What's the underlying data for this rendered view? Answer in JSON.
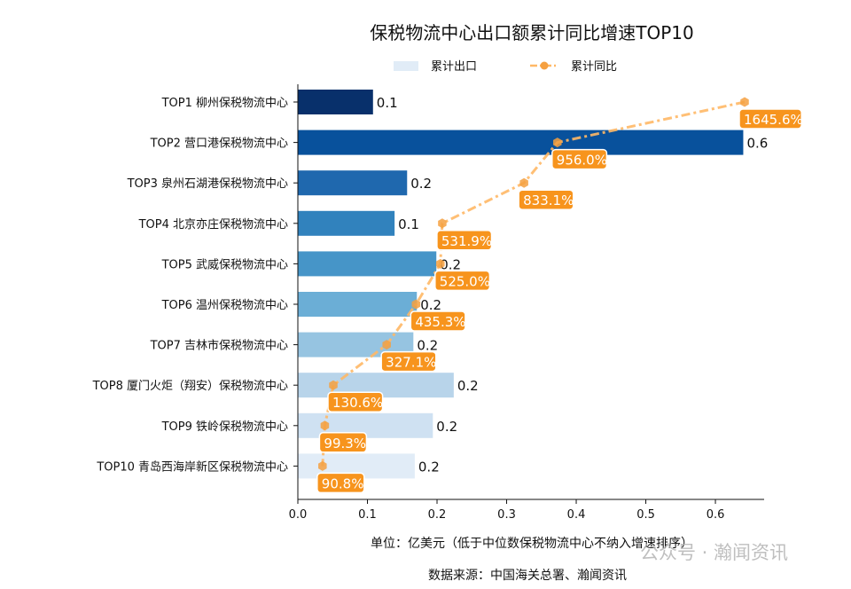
{
  "chart_data": {
    "type": "bar",
    "orientation": "horizontal",
    "title": "保税物流中心出口额累计同比增速TOP10",
    "xlabel": "单位：亿美元（低于中位数保税物流中心不纳入增速排序）",
    "source": "数据来源：中国海关总署、瀚闻资讯",
    "watermark": "公众号 · 瀚闻资讯",
    "xlim": [
      0,
      0.67
    ],
    "xticks": [
      "0.0",
      "0.1",
      "0.2",
      "0.3",
      "0.4",
      "0.5",
      "0.6"
    ],
    "grid": false,
    "legend_placement": "top-center",
    "categories": [
      "TOP1 柳州保税物流中心",
      "TOP2 营口港保税物流中心",
      "TOP3 泉州石湖港保税物流中心",
      "TOP4 北京亦庄保税物流中心",
      "TOP5 武威保税物流中心",
      "TOP6 温州保税物流中心",
      "TOP7 吉林市保税物流中心",
      "TOP8 厦门火炬（翔安）保税物流中心",
      "TOP9 铁岭保税物流中心",
      "TOP10 青岛西海岸新区保税物流中心"
    ],
    "series": [
      {
        "name": "累计出口",
        "type": "bar",
        "values": [
          0.108,
          0.64,
          0.157,
          0.139,
          0.199,
          0.171,
          0.166,
          0.224,
          0.194,
          0.168
        ],
        "labels": [
          "0.1",
          "0.6",
          "0.2",
          "0.1",
          "0.2",
          "0.2",
          "0.2",
          "0.2",
          "0.2",
          "0.2"
        ],
        "colors": [
          "#08306b",
          "#08519c",
          "#1f68ae",
          "#3182bd",
          "#4695c8",
          "#6baed6",
          "#96c4e1",
          "#b8d4ea",
          "#cfe1f2",
          "#e1ecf7"
        ]
      },
      {
        "name": "累计同比",
        "type": "line",
        "axis": "secondary-hidden",
        "values": [
          1645.6,
          956.0,
          833.1,
          531.9,
          525.0,
          435.3,
          327.1,
          130.6,
          99.3,
          90.8
        ],
        "labels": [
          "1645.6%",
          "956.0%",
          "833.1%",
          "531.9%",
          "525.0%",
          "435.3%",
          "327.1%",
          "130.6%",
          "99.3%",
          "90.8%"
        ],
        "color": "#ffb866",
        "label_color": "#f7941d",
        "line_style": "dash-dot",
        "marker": "hexagon"
      }
    ]
  }
}
